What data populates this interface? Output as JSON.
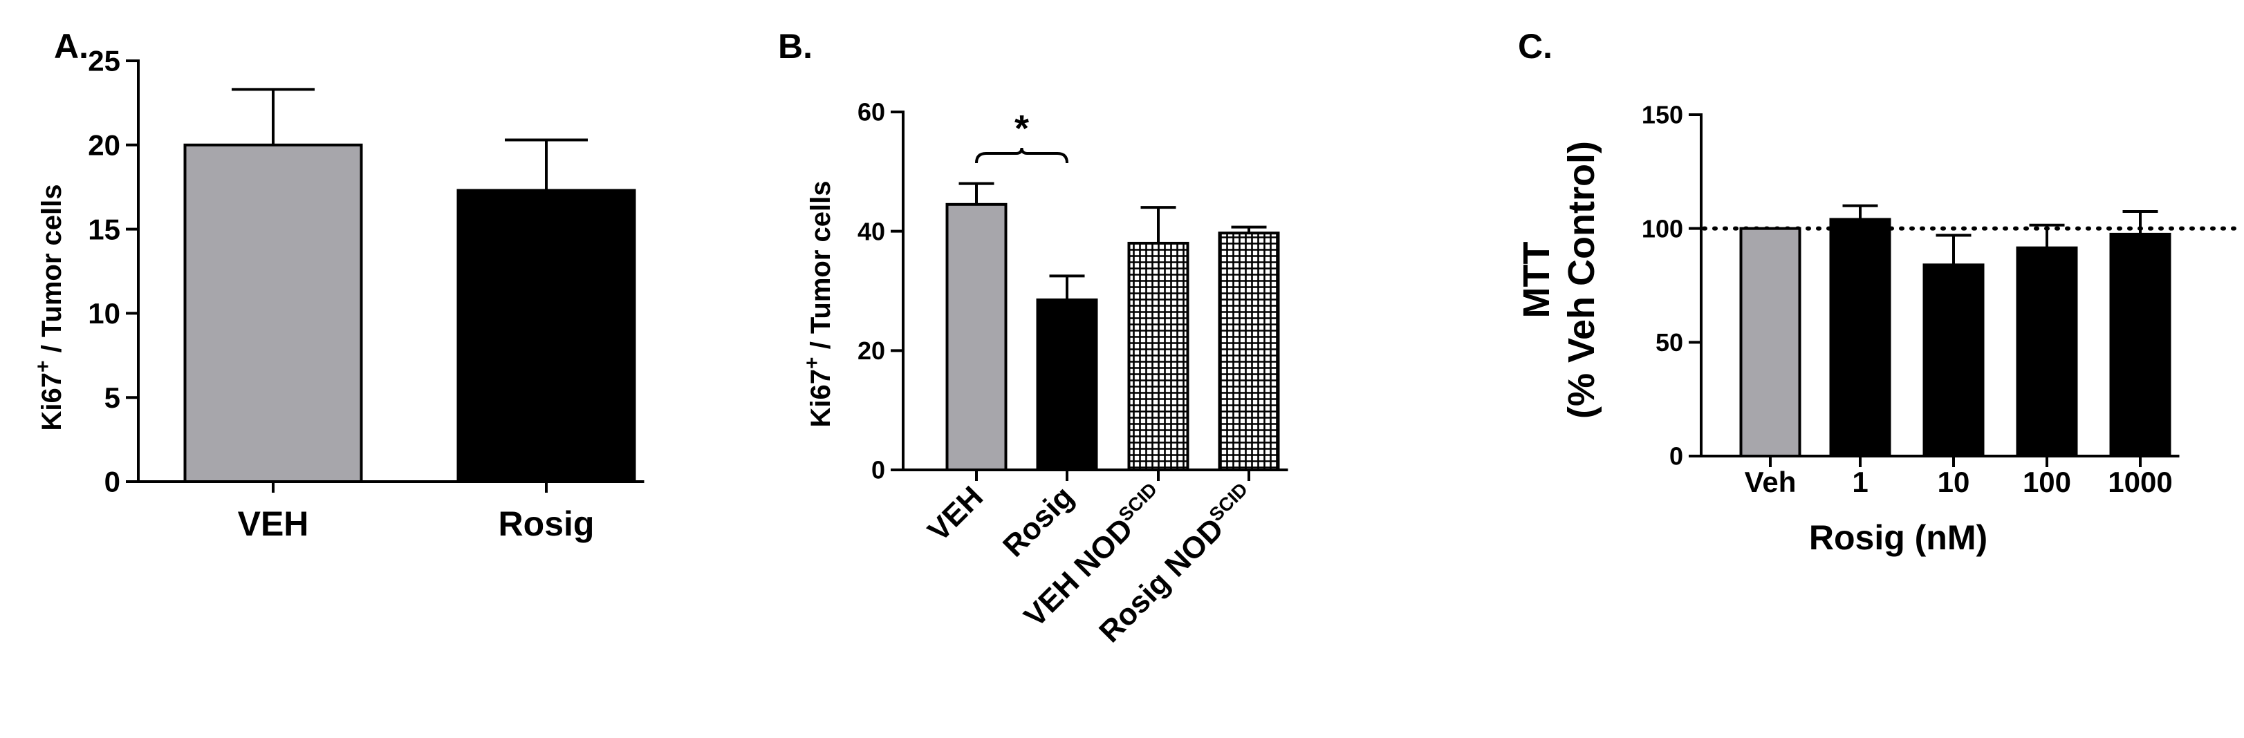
{
  "colors": {
    "gray": "#a7a6ab",
    "black": "#000000"
  },
  "chart_data": [
    {
      "panel_label": "A.",
      "type": "bar",
      "categories": [
        "VEH",
        "Rosig"
      ],
      "values": [
        20,
        17.3
      ],
      "errors": [
        3.3,
        3.0
      ],
      "fills": [
        "gray",
        "black"
      ],
      "ylabel_main": "Ki67",
      "ylabel_sup": "+",
      "ylabel_rest": " / Tumor cells",
      "ylim": [
        0,
        25
      ],
      "yticks": [
        "0",
        "5",
        "10",
        "15",
        "20",
        "25"
      ],
      "xlabel": "",
      "grid": false
    },
    {
      "panel_label": "B.",
      "type": "bar",
      "categories": [
        {
          "main": "VEH",
          "sup": ""
        },
        {
          "main": "Rosig",
          "sup": ""
        },
        {
          "main": "VEH  NOD",
          "sup": "SCID"
        },
        {
          "main": "Rosig NOD",
          "sup": "SCID"
        }
      ],
      "values": [
        44.5,
        28.5,
        38,
        39.7
      ],
      "errors": [
        3.5,
        4.0,
        6.0,
        1.0
      ],
      "fills": [
        "gray",
        "black",
        "crosshatch",
        "crosshatch"
      ],
      "ylabel_main": "Ki67",
      "ylabel_sup": "+",
      "ylabel_rest": " / Tumor cells",
      "ylim": [
        0,
        60
      ],
      "yticks": [
        "0",
        "20",
        "40",
        "60"
      ],
      "significance": {
        "from": 0,
        "to": 1,
        "label": "*"
      },
      "grid": false
    },
    {
      "panel_label": "C.",
      "type": "bar",
      "categories": [
        "Veh",
        "1",
        "10",
        "100",
        "1000"
      ],
      "values": [
        100,
        104,
        84,
        91.5,
        97.5
      ],
      "errors": [
        0,
        6,
        13,
        10,
        10
      ],
      "fills": [
        "gray",
        "black",
        "black",
        "black",
        "black"
      ],
      "ylabel_line1": "MTT",
      "ylabel_line2": "(% Veh Control)",
      "xlabel": "Rosig (nM)",
      "ylim": [
        0,
        150
      ],
      "yticks": [
        "0",
        "50",
        "100",
        "150"
      ],
      "reference_line": 100,
      "grid": false
    }
  ]
}
